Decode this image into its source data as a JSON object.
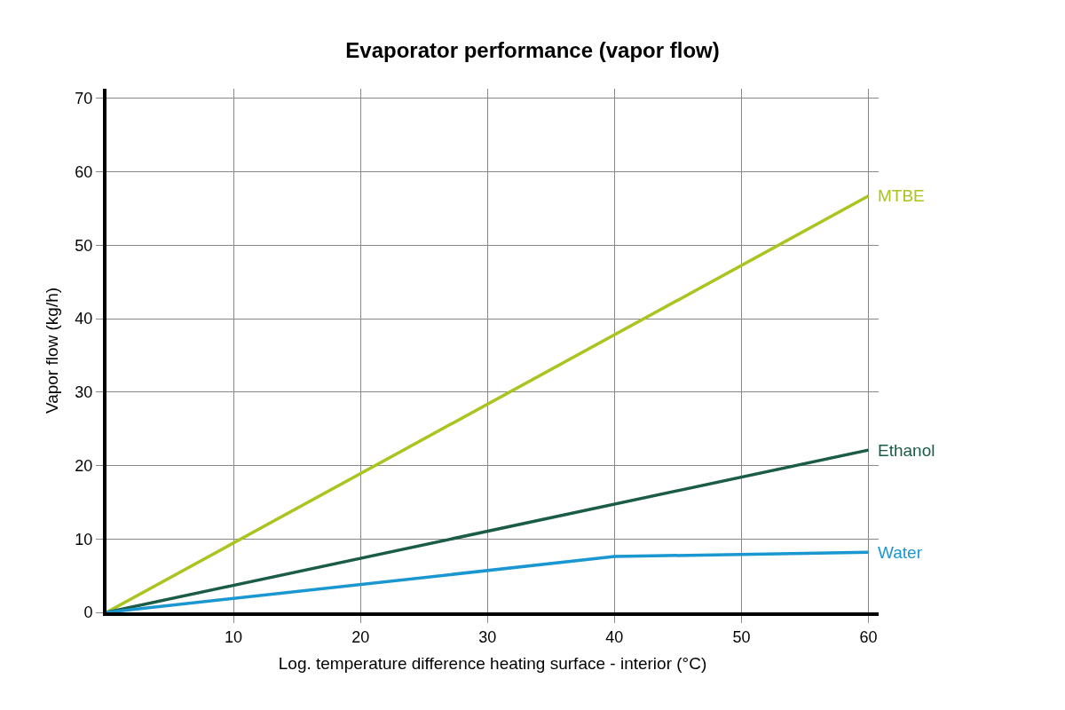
{
  "chart_data": {
    "type": "line",
    "title": "Evaporator performance (vapor flow)",
    "xlabel": "Log. temperature difference heating surface - interior (°C)",
    "ylabel": "Vapor flow (kg/h)",
    "series": [
      {
        "name": "MTBE",
        "color": "#a8c520",
        "x": [
          0,
          60
        ],
        "values": [
          0,
          56.7
        ]
      },
      {
        "name": "Ethanol",
        "color": "#1a5c45",
        "x": [
          0,
          60
        ],
        "values": [
          0,
          22.1
        ]
      },
      {
        "name": "Water",
        "color": "#1a97d0",
        "x": [
          0,
          40,
          60
        ],
        "values": [
          0,
          7.6,
          8.2
        ]
      }
    ],
    "xlim": [
      0,
      60.8
    ],
    "ylim": [
      0,
      71.3
    ],
    "xticks": [
      10,
      20,
      30,
      40,
      50,
      60
    ],
    "yticks": [
      0,
      10,
      20,
      30,
      40,
      50,
      60,
      70
    ],
    "grid": true,
    "legend": false,
    "marker": "none",
    "line_style": "solid"
  }
}
